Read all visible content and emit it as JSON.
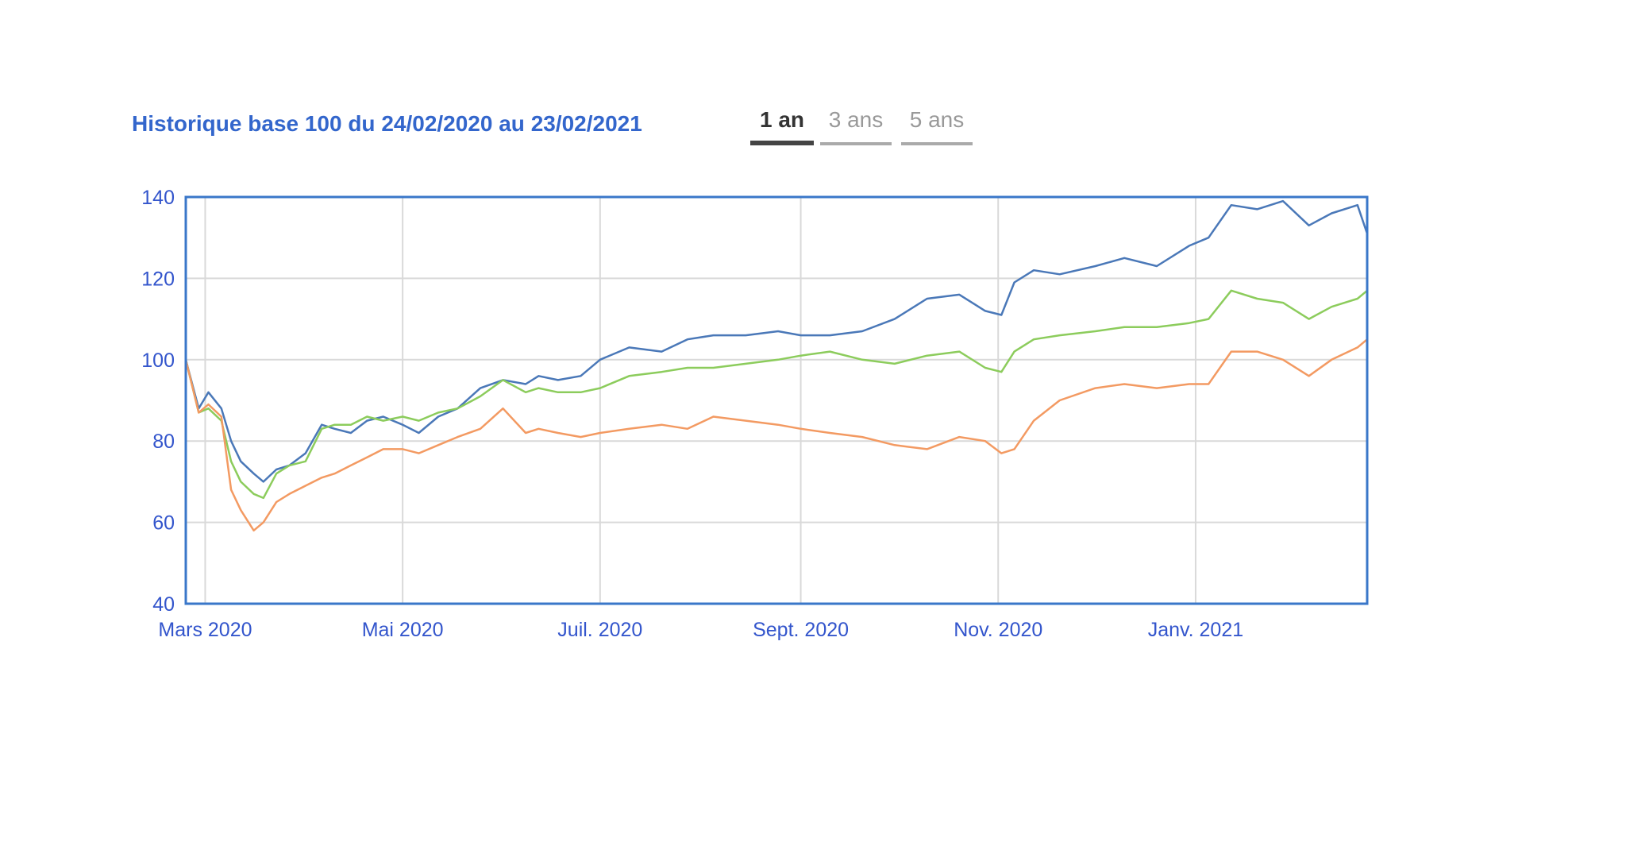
{
  "header": {
    "title": "Historique base 100 du 24/02/2020 au 23/02/2021",
    "tabs": [
      {
        "label": "1 an",
        "active": true
      },
      {
        "label": "3 ans",
        "active": false
      },
      {
        "label": "5 ans",
        "active": false
      }
    ]
  },
  "colors": {
    "frame": "#3a77c9",
    "grid": "#d9d9d9",
    "labels": "#3355cc"
  },
  "chart_data": {
    "type": "line",
    "title": "Historique base 100 du 24/02/2020 au 23/02/2021",
    "xlabel": "",
    "ylabel": "",
    "ylim": [
      40,
      140
    ],
    "yticks": [
      40,
      60,
      80,
      100,
      120,
      140
    ],
    "xlim": [
      "2020-02-24",
      "2021-02-23"
    ],
    "xticks": [
      {
        "date": "2020-03-01",
        "label": "Mars 2020"
      },
      {
        "date": "2020-05-01",
        "label": "Mai 2020"
      },
      {
        "date": "2020-07-01",
        "label": "Juil. 2020"
      },
      {
        "date": "2020-09-01",
        "label": "Sept. 2020"
      },
      {
        "date": "2020-11-01",
        "label": "Nov. 2020"
      },
      {
        "date": "2021-01-01",
        "label": "Janv. 2021"
      }
    ],
    "grid": true,
    "legend": "none",
    "series": [
      {
        "color": "#4a78b8",
        "x": [
          "2020-02-24",
          "2020-02-28",
          "2020-03-02",
          "2020-03-06",
          "2020-03-09",
          "2020-03-12",
          "2020-03-16",
          "2020-03-19",
          "2020-03-23",
          "2020-03-27",
          "2020-04-01",
          "2020-04-06",
          "2020-04-10",
          "2020-04-15",
          "2020-04-20",
          "2020-04-25",
          "2020-05-01",
          "2020-05-06",
          "2020-05-12",
          "2020-05-18",
          "2020-05-25",
          "2020-06-01",
          "2020-06-08",
          "2020-06-12",
          "2020-06-18",
          "2020-06-25",
          "2020-07-01",
          "2020-07-10",
          "2020-07-20",
          "2020-07-28",
          "2020-08-05",
          "2020-08-15",
          "2020-08-25",
          "2020-09-01",
          "2020-09-10",
          "2020-09-20",
          "2020-09-30",
          "2020-10-10",
          "2020-10-20",
          "2020-10-28",
          "2020-11-02",
          "2020-11-06",
          "2020-11-12",
          "2020-11-20",
          "2020-12-01",
          "2020-12-10",
          "2020-12-20",
          "2020-12-30",
          "2021-01-05",
          "2021-01-12",
          "2021-01-20",
          "2021-01-28",
          "2021-02-05",
          "2021-02-12",
          "2021-02-20",
          "2021-02-23"
        ],
        "y": [
          100,
          88,
          92,
          88,
          80,
          75,
          72,
          70,
          73,
          74,
          77,
          84,
          83,
          82,
          85,
          86,
          84,
          82,
          86,
          88,
          93,
          95,
          94,
          96,
          95,
          96,
          100,
          103,
          102,
          105,
          106,
          106,
          107,
          106,
          106,
          107,
          110,
          115,
          116,
          112,
          111,
          119,
          122,
          121,
          123,
          125,
          123,
          128,
          130,
          138,
          137,
          139,
          133,
          136,
          138,
          131
        ]
      },
      {
        "color": "#8ccc5c",
        "x": [
          "2020-02-24",
          "2020-02-28",
          "2020-03-02",
          "2020-03-06",
          "2020-03-09",
          "2020-03-12",
          "2020-03-16",
          "2020-03-19",
          "2020-03-23",
          "2020-03-27",
          "2020-04-01",
          "2020-04-06",
          "2020-04-10",
          "2020-04-15",
          "2020-04-20",
          "2020-04-25",
          "2020-05-01",
          "2020-05-06",
          "2020-05-12",
          "2020-05-18",
          "2020-05-25",
          "2020-06-01",
          "2020-06-08",
          "2020-06-12",
          "2020-06-18",
          "2020-06-25",
          "2020-07-01",
          "2020-07-10",
          "2020-07-20",
          "2020-07-28",
          "2020-08-05",
          "2020-08-15",
          "2020-08-25",
          "2020-09-01",
          "2020-09-10",
          "2020-09-20",
          "2020-09-30",
          "2020-10-10",
          "2020-10-20",
          "2020-10-28",
          "2020-11-02",
          "2020-11-06",
          "2020-11-12",
          "2020-11-20",
          "2020-12-01",
          "2020-12-10",
          "2020-12-20",
          "2020-12-30",
          "2021-01-05",
          "2021-01-12",
          "2021-01-20",
          "2021-01-28",
          "2021-02-05",
          "2021-02-12",
          "2021-02-20",
          "2021-02-23"
        ],
        "y": [
          100,
          87,
          88,
          85,
          75,
          70,
          67,
          66,
          72,
          74,
          75,
          83,
          84,
          84,
          86,
          85,
          86,
          85,
          87,
          88,
          91,
          95,
          92,
          93,
          92,
          92,
          93,
          96,
          97,
          98,
          98,
          99,
          100,
          101,
          102,
          100,
          99,
          101,
          102,
          98,
          97,
          102,
          105,
          106,
          107,
          108,
          108,
          109,
          110,
          117,
          115,
          114,
          110,
          113,
          115,
          117
        ]
      },
      {
        "color": "#f39a62",
        "x": [
          "2020-02-24",
          "2020-02-28",
          "2020-03-02",
          "2020-03-06",
          "2020-03-09",
          "2020-03-12",
          "2020-03-16",
          "2020-03-19",
          "2020-03-23",
          "2020-03-27",
          "2020-04-01",
          "2020-04-06",
          "2020-04-10",
          "2020-04-15",
          "2020-04-20",
          "2020-04-25",
          "2020-05-01",
          "2020-05-06",
          "2020-05-12",
          "2020-05-18",
          "2020-05-25",
          "2020-06-01",
          "2020-06-08",
          "2020-06-12",
          "2020-06-18",
          "2020-06-25",
          "2020-07-01",
          "2020-07-10",
          "2020-07-20",
          "2020-07-28",
          "2020-08-05",
          "2020-08-15",
          "2020-08-25",
          "2020-09-01",
          "2020-09-10",
          "2020-09-20",
          "2020-09-30",
          "2020-10-10",
          "2020-10-20",
          "2020-10-28",
          "2020-11-02",
          "2020-11-06",
          "2020-11-12",
          "2020-11-20",
          "2020-12-01",
          "2020-12-10",
          "2020-12-20",
          "2020-12-30",
          "2021-01-05",
          "2021-01-12",
          "2021-01-20",
          "2021-01-28",
          "2021-02-05",
          "2021-02-12",
          "2021-02-20",
          "2021-02-23"
        ],
        "y": [
          100,
          87,
          89,
          86,
          68,
          63,
          58,
          60,
          65,
          67,
          69,
          71,
          72,
          74,
          76,
          78,
          78,
          77,
          79,
          81,
          83,
          88,
          82,
          83,
          82,
          81,
          82,
          83,
          84,
          83,
          86,
          85,
          84,
          83,
          82,
          81,
          79,
          78,
          81,
          80,
          77,
          78,
          85,
          90,
          93,
          94,
          93,
          94,
          94,
          102,
          102,
          100,
          96,
          100,
          103,
          105
        ]
      }
    ]
  }
}
